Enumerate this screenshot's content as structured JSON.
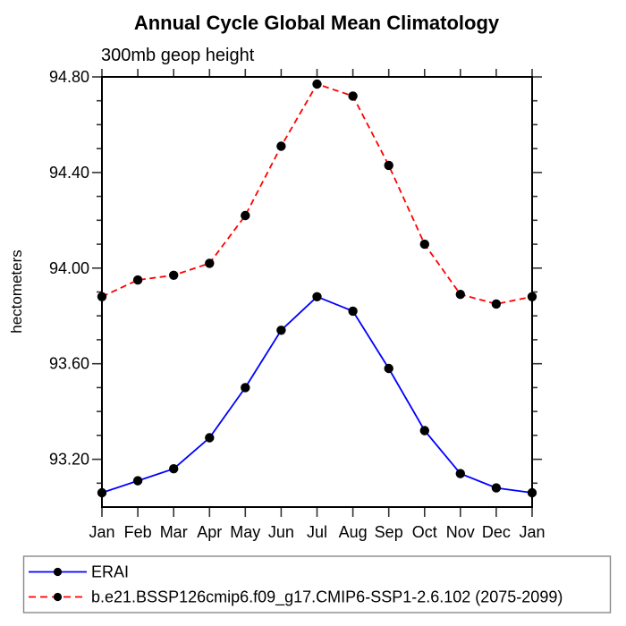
{
  "title": "Annual Cycle Global Mean Climatology",
  "subtitle": "300mb geop height",
  "ylabel": "hectometers",
  "chart_data": {
    "type": "line",
    "title": "Annual Cycle Global Mean Climatology",
    "subtitle": "300mb geop height",
    "xlabel": "",
    "ylabel": "hectometers",
    "categories": [
      "Jan",
      "Feb",
      "Mar",
      "Apr",
      "May",
      "Jun",
      "Jul",
      "Aug",
      "Sep",
      "Oct",
      "Nov",
      "Dec",
      "Jan"
    ],
    "series": [
      {
        "name": "ERAI",
        "color": "#0000ff",
        "line_style": "solid",
        "marker": "circle",
        "marker_color": "#000000",
        "values": [
          93.06,
          93.11,
          93.16,
          93.29,
          93.5,
          93.74,
          93.88,
          93.82,
          93.58,
          93.32,
          93.14,
          93.08,
          93.06
        ]
      },
      {
        "name": "b.e21.BSSP126cmip6.f09_g17.CMIP6-SSP1-2.6.102 (2075-2099)",
        "color": "#ff0000",
        "line_style": "dashed",
        "marker": "circle",
        "marker_color": "#000000",
        "values": [
          93.88,
          93.95,
          93.97,
          94.02,
          94.22,
          94.51,
          94.77,
          94.72,
          94.43,
          94.1,
          93.89,
          93.85,
          93.88
        ]
      }
    ],
    "ylim": [
      93.0,
      94.8
    ],
    "ytick_major": [
      93.2,
      93.6,
      94.0,
      94.4,
      94.8
    ],
    "ytick_major_labels": [
      "93.20",
      "93.60",
      "94.00",
      "94.40",
      "94.80"
    ],
    "ytick_minor_step": 0.1,
    "grid": "off",
    "legend_position": "bottom"
  },
  "legend": {
    "entries": [
      {
        "label": "ERAI"
      },
      {
        "label": "b.e21.BSSP126cmip6.f09_g17.CMIP6-SSP1-2.6.102 (2075-2099)"
      }
    ]
  }
}
